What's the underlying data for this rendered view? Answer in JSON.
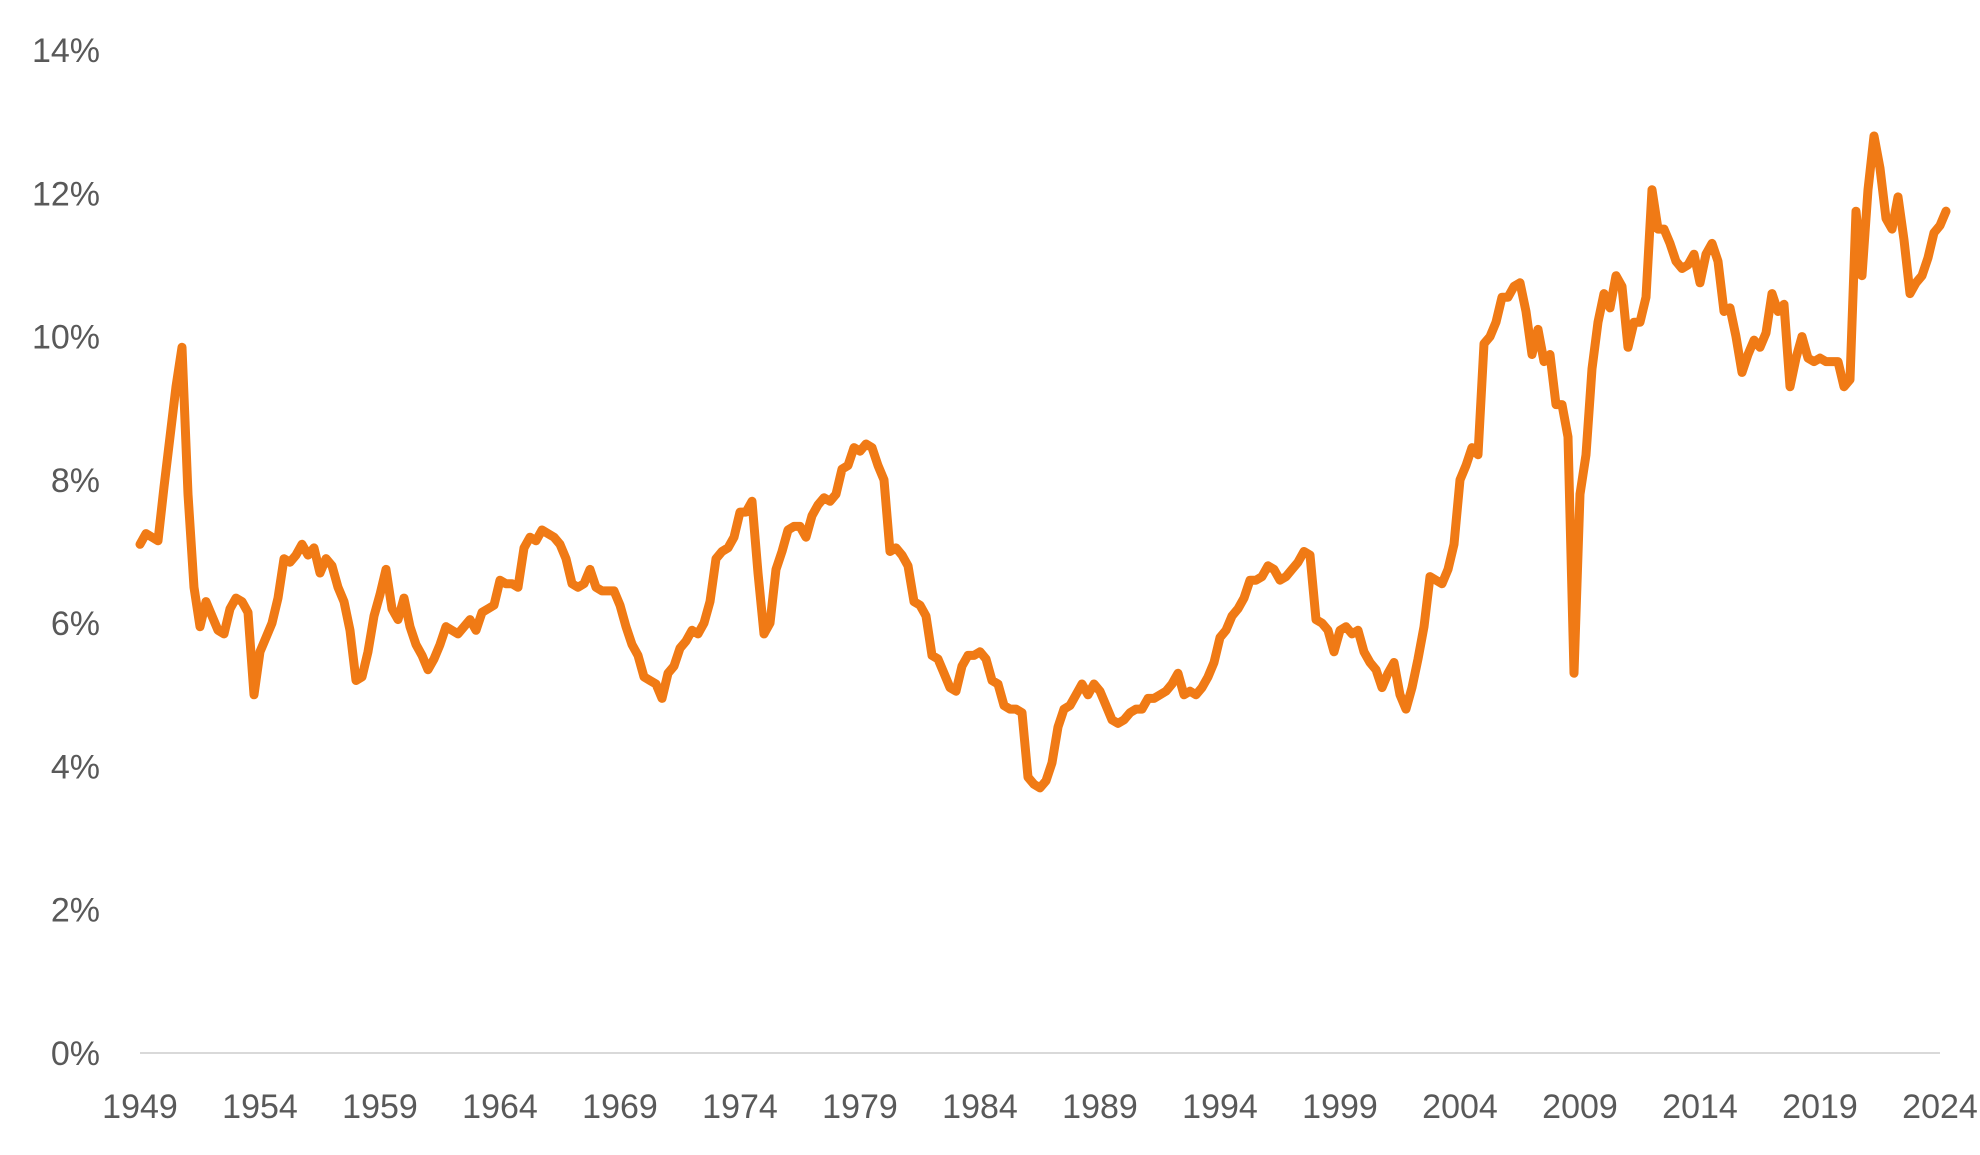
{
  "chart_data": {
    "type": "line",
    "title": "",
    "xlabel": "",
    "ylabel": "",
    "ylim": [
      0,
      14
    ],
    "xlim": [
      1949,
      2024
    ],
    "grid": false,
    "legend": "none",
    "x_tick_labels": [
      "1949",
      "1954",
      "1959",
      "1964",
      "1969",
      "1974",
      "1979",
      "1984",
      "1989",
      "1994",
      "1999",
      "2004",
      "2009",
      "2014",
      "2019",
      "2024"
    ],
    "y_tick_labels": [
      "0%",
      "2%",
      "4%",
      "6%",
      "8%",
      "10%",
      "12%",
      "14%"
    ],
    "y_tick_values": [
      0,
      2,
      4,
      6,
      8,
      10,
      12,
      14
    ],
    "series": [
      {
        "color": "#F07A15",
        "points": [
          [
            1949.0,
            7.1
          ],
          [
            1949.25,
            7.25
          ],
          [
            1949.5,
            7.2
          ],
          [
            1949.75,
            7.15
          ],
          [
            1950.0,
            7.9
          ],
          [
            1950.25,
            8.6
          ],
          [
            1950.5,
            9.3
          ],
          [
            1950.75,
            9.85
          ],
          [
            1951.0,
            7.8
          ],
          [
            1951.25,
            6.5
          ],
          [
            1951.5,
            5.95
          ],
          [
            1951.75,
            6.3
          ],
          [
            1952.0,
            6.1
          ],
          [
            1952.25,
            5.9
          ],
          [
            1952.5,
            5.85
          ],
          [
            1952.75,
            6.2
          ],
          [
            1953.0,
            6.35
          ],
          [
            1953.25,
            6.3
          ],
          [
            1953.5,
            6.15
          ],
          [
            1953.75,
            5.0
          ],
          [
            1954.0,
            5.6
          ],
          [
            1954.25,
            5.8
          ],
          [
            1954.5,
            6.0
          ],
          [
            1954.75,
            6.35
          ],
          [
            1955.0,
            6.9
          ],
          [
            1955.25,
            6.85
          ],
          [
            1955.5,
            6.95
          ],
          [
            1955.75,
            7.1
          ],
          [
            1956.0,
            6.95
          ],
          [
            1956.25,
            7.05
          ],
          [
            1956.5,
            6.7
          ],
          [
            1956.75,
            6.9
          ],
          [
            1957.0,
            6.8
          ],
          [
            1957.25,
            6.5
          ],
          [
            1957.5,
            6.3
          ],
          [
            1957.75,
            5.9
          ],
          [
            1958.0,
            5.2
          ],
          [
            1958.25,
            5.25
          ],
          [
            1958.5,
            5.6
          ],
          [
            1958.75,
            6.1
          ],
          [
            1959.0,
            6.4
          ],
          [
            1959.25,
            6.75
          ],
          [
            1959.5,
            6.2
          ],
          [
            1959.75,
            6.05
          ],
          [
            1960.0,
            6.35
          ],
          [
            1960.25,
            5.95
          ],
          [
            1960.5,
            5.7
          ],
          [
            1960.75,
            5.55
          ],
          [
            1961.0,
            5.35
          ],
          [
            1961.25,
            5.5
          ],
          [
            1961.5,
            5.7
          ],
          [
            1961.75,
            5.95
          ],
          [
            1962.0,
            5.9
          ],
          [
            1962.25,
            5.85
          ],
          [
            1962.5,
            5.95
          ],
          [
            1962.75,
            6.05
          ],
          [
            1963.0,
            5.9
          ],
          [
            1963.25,
            6.15
          ],
          [
            1963.5,
            6.2
          ],
          [
            1963.75,
            6.25
          ],
          [
            1964.0,
            6.6
          ],
          [
            1964.25,
            6.55
          ],
          [
            1964.5,
            6.55
          ],
          [
            1964.75,
            6.5
          ],
          [
            1965.0,
            7.05
          ],
          [
            1965.25,
            7.2
          ],
          [
            1965.5,
            7.15
          ],
          [
            1965.75,
            7.3
          ],
          [
            1966.0,
            7.25
          ],
          [
            1966.25,
            7.2
          ],
          [
            1966.5,
            7.1
          ],
          [
            1966.75,
            6.9
          ],
          [
            1967.0,
            6.55
          ],
          [
            1967.25,
            6.5
          ],
          [
            1967.5,
            6.55
          ],
          [
            1967.75,
            6.75
          ],
          [
            1968.0,
            6.5
          ],
          [
            1968.25,
            6.45
          ],
          [
            1968.5,
            6.45
          ],
          [
            1968.75,
            6.45
          ],
          [
            1969.0,
            6.25
          ],
          [
            1969.25,
            5.95
          ],
          [
            1969.5,
            5.7
          ],
          [
            1969.75,
            5.55
          ],
          [
            1970.0,
            5.25
          ],
          [
            1970.25,
            5.2
          ],
          [
            1970.5,
            5.15
          ],
          [
            1970.75,
            4.95
          ],
          [
            1971.0,
            5.3
          ],
          [
            1971.25,
            5.4
          ],
          [
            1971.5,
            5.65
          ],
          [
            1971.75,
            5.75
          ],
          [
            1972.0,
            5.9
          ],
          [
            1972.25,
            5.85
          ],
          [
            1972.5,
            6.0
          ],
          [
            1972.75,
            6.3
          ],
          [
            1973.0,
            6.9
          ],
          [
            1973.25,
            7.0
          ],
          [
            1973.5,
            7.05
          ],
          [
            1973.75,
            7.2
          ],
          [
            1974.0,
            7.55
          ],
          [
            1974.25,
            7.55
          ],
          [
            1974.5,
            7.7
          ],
          [
            1974.75,
            6.7
          ],
          [
            1975.0,
            5.85
          ],
          [
            1975.25,
            6.0
          ],
          [
            1975.5,
            6.75
          ],
          [
            1975.75,
            7.0
          ],
          [
            1976.0,
            7.3
          ],
          [
            1976.25,
            7.35
          ],
          [
            1976.5,
            7.35
          ],
          [
            1976.75,
            7.2
          ],
          [
            1977.0,
            7.5
          ],
          [
            1977.25,
            7.65
          ],
          [
            1977.5,
            7.75
          ],
          [
            1977.75,
            7.7
          ],
          [
            1978.0,
            7.8
          ],
          [
            1978.25,
            8.15
          ],
          [
            1978.5,
            8.2
          ],
          [
            1978.75,
            8.45
          ],
          [
            1979.0,
            8.4
          ],
          [
            1979.25,
            8.5
          ],
          [
            1979.5,
            8.45
          ],
          [
            1979.75,
            8.2
          ],
          [
            1980.0,
            8.0
          ],
          [
            1980.25,
            7.0
          ],
          [
            1980.5,
            7.05
          ],
          [
            1980.75,
            6.95
          ],
          [
            1981.0,
            6.8
          ],
          [
            1981.25,
            6.3
          ],
          [
            1981.5,
            6.25
          ],
          [
            1981.75,
            6.1
          ],
          [
            1982.0,
            5.55
          ],
          [
            1982.25,
            5.5
          ],
          [
            1982.5,
            5.3
          ],
          [
            1982.75,
            5.1
          ],
          [
            1983.0,
            5.05
          ],
          [
            1983.25,
            5.4
          ],
          [
            1983.5,
            5.55
          ],
          [
            1983.75,
            5.55
          ],
          [
            1984.0,
            5.6
          ],
          [
            1984.25,
            5.5
          ],
          [
            1984.5,
            5.2
          ],
          [
            1984.75,
            5.15
          ],
          [
            1985.0,
            4.85
          ],
          [
            1985.25,
            4.8
          ],
          [
            1985.5,
            4.8
          ],
          [
            1985.75,
            4.75
          ],
          [
            1986.0,
            3.85
          ],
          [
            1986.25,
            3.75
          ],
          [
            1986.5,
            3.7
          ],
          [
            1986.75,
            3.8
          ],
          [
            1987.0,
            4.05
          ],
          [
            1987.25,
            4.55
          ],
          [
            1987.5,
            4.8
          ],
          [
            1987.75,
            4.85
          ],
          [
            1988.0,
            5.0
          ],
          [
            1988.25,
            5.15
          ],
          [
            1988.5,
            5.0
          ],
          [
            1988.75,
            5.15
          ],
          [
            1989.0,
            5.05
          ],
          [
            1989.25,
            4.85
          ],
          [
            1989.5,
            4.65
          ],
          [
            1989.75,
            4.6
          ],
          [
            1990.0,
            4.65
          ],
          [
            1990.25,
            4.75
          ],
          [
            1990.5,
            4.8
          ],
          [
            1990.75,
            4.8
          ],
          [
            1991.0,
            4.95
          ],
          [
            1991.25,
            4.95
          ],
          [
            1991.5,
            5.0
          ],
          [
            1991.75,
            5.05
          ],
          [
            1992.0,
            5.15
          ],
          [
            1992.25,
            5.3
          ],
          [
            1992.5,
            5.0
          ],
          [
            1992.75,
            5.05
          ],
          [
            1993.0,
            5.0
          ],
          [
            1993.25,
            5.1
          ],
          [
            1993.5,
            5.25
          ],
          [
            1993.75,
            5.45
          ],
          [
            1994.0,
            5.8
          ],
          [
            1994.25,
            5.9
          ],
          [
            1994.5,
            6.1
          ],
          [
            1994.75,
            6.2
          ],
          [
            1995.0,
            6.35
          ],
          [
            1995.25,
            6.6
          ],
          [
            1995.5,
            6.6
          ],
          [
            1995.75,
            6.65
          ],
          [
            1996.0,
            6.8
          ],
          [
            1996.25,
            6.75
          ],
          [
            1996.5,
            6.6
          ],
          [
            1996.75,
            6.65
          ],
          [
            1997.0,
            6.75
          ],
          [
            1997.25,
            6.85
          ],
          [
            1997.5,
            7.0
          ],
          [
            1997.75,
            6.95
          ],
          [
            1998.0,
            6.05
          ],
          [
            1998.25,
            6.0
          ],
          [
            1998.5,
            5.9
          ],
          [
            1998.75,
            5.6
          ],
          [
            1999.0,
            5.9
          ],
          [
            1999.25,
            5.95
          ],
          [
            1999.5,
            5.85
          ],
          [
            1999.75,
            5.9
          ],
          [
            2000.0,
            5.6
          ],
          [
            2000.25,
            5.45
          ],
          [
            2000.5,
            5.35
          ],
          [
            2000.75,
            5.1
          ],
          [
            2001.0,
            5.3
          ],
          [
            2001.25,
            5.45
          ],
          [
            2001.5,
            5.0
          ],
          [
            2001.75,
            4.8
          ],
          [
            2002.0,
            5.1
          ],
          [
            2002.25,
            5.5
          ],
          [
            2002.5,
            5.95
          ],
          [
            2002.75,
            6.65
          ],
          [
            2003.0,
            6.6
          ],
          [
            2003.25,
            6.55
          ],
          [
            2003.5,
            6.75
          ],
          [
            2003.75,
            7.1
          ],
          [
            2004.0,
            8.0
          ],
          [
            2004.25,
            8.2
          ],
          [
            2004.5,
            8.45
          ],
          [
            2004.75,
            8.35
          ],
          [
            2005.0,
            9.9
          ],
          [
            2005.25,
            10.0
          ],
          [
            2005.5,
            10.2
          ],
          [
            2005.75,
            10.55
          ],
          [
            2006.0,
            10.55
          ],
          [
            2006.25,
            10.7
          ],
          [
            2006.5,
            10.75
          ],
          [
            2006.75,
            10.35
          ],
          [
            2007.0,
            9.75
          ],
          [
            2007.25,
            10.1
          ],
          [
            2007.5,
            9.65
          ],
          [
            2007.75,
            9.75
          ],
          [
            2008.0,
            9.05
          ],
          [
            2008.25,
            9.05
          ],
          [
            2008.5,
            8.6
          ],
          [
            2008.75,
            5.3
          ],
          [
            2009.0,
            7.8
          ],
          [
            2009.25,
            8.35
          ],
          [
            2009.5,
            9.55
          ],
          [
            2009.75,
            10.2
          ],
          [
            2010.0,
            10.6
          ],
          [
            2010.25,
            10.4
          ],
          [
            2010.5,
            10.85
          ],
          [
            2010.75,
            10.7
          ],
          [
            2011.0,
            9.85
          ],
          [
            2011.25,
            10.2
          ],
          [
            2011.5,
            10.2
          ],
          [
            2011.75,
            10.55
          ],
          [
            2012.0,
            12.05
          ],
          [
            2012.25,
            11.5
          ],
          [
            2012.5,
            11.5
          ],
          [
            2012.75,
            11.3
          ],
          [
            2013.0,
            11.05
          ],
          [
            2013.25,
            10.95
          ],
          [
            2013.5,
            11.0
          ],
          [
            2013.75,
            11.15
          ],
          [
            2014.0,
            10.75
          ],
          [
            2014.25,
            11.15
          ],
          [
            2014.5,
            11.3
          ],
          [
            2014.75,
            11.05
          ],
          [
            2015.0,
            10.35
          ],
          [
            2015.25,
            10.4
          ],
          [
            2015.5,
            10.0
          ],
          [
            2015.75,
            9.5
          ],
          [
            2016.0,
            9.75
          ],
          [
            2016.25,
            9.95
          ],
          [
            2016.5,
            9.85
          ],
          [
            2016.75,
            10.05
          ],
          [
            2017.0,
            10.6
          ],
          [
            2017.25,
            10.35
          ],
          [
            2017.5,
            10.45
          ],
          [
            2017.75,
            9.3
          ],
          [
            2018.0,
            9.7
          ],
          [
            2018.25,
            10.0
          ],
          [
            2018.5,
            9.7
          ],
          [
            2018.75,
            9.65
          ],
          [
            2019.0,
            9.7
          ],
          [
            2019.25,
            9.65
          ],
          [
            2019.5,
            9.65
          ],
          [
            2019.75,
            9.65
          ],
          [
            2020.0,
            9.3
          ],
          [
            2020.25,
            9.4
          ],
          [
            2020.5,
            11.75
          ],
          [
            2020.75,
            10.85
          ],
          [
            2021.0,
            12.05
          ],
          [
            2021.25,
            12.8
          ],
          [
            2021.5,
            12.35
          ],
          [
            2021.75,
            11.65
          ],
          [
            2022.0,
            11.5
          ],
          [
            2022.25,
            11.95
          ],
          [
            2022.5,
            11.35
          ],
          [
            2022.75,
            10.6
          ],
          [
            2023.0,
            10.75
          ],
          [
            2023.25,
            10.85
          ],
          [
            2023.5,
            11.1
          ],
          [
            2023.75,
            11.45
          ],
          [
            2024.0,
            11.55
          ],
          [
            2024.25,
            11.75
          ]
        ]
      }
    ]
  }
}
